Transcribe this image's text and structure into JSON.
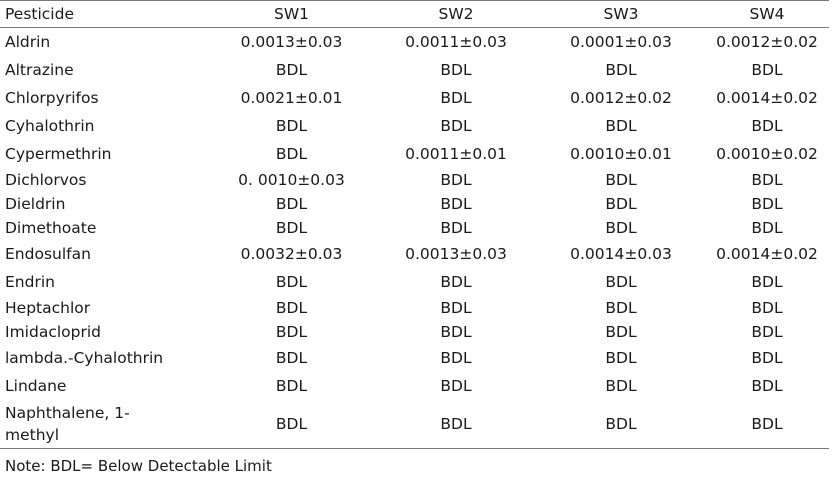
{
  "table": {
    "headers": [
      "Pesticide",
      "SW1",
      "SW2",
      "SW3",
      "SW4"
    ],
    "rows": [
      [
        "Aldrin",
        "0.0013±0.03",
        "0.0011±0.03",
        "0.0001±0.03",
        "0.0012±0.02"
      ],
      [
        "Altrazine",
        "BDL",
        "BDL",
        "BDL",
        "BDL"
      ],
      [
        "Chlorpyrifos",
        "0.0021±0.01",
        "BDL",
        "0.0012±0.02",
        "0.0014±0.02"
      ],
      [
        "Cyhalothrin",
        "BDL",
        "BDL",
        "BDL",
        "BDL"
      ],
      [
        "Cypermethrin",
        "BDL",
        "0.0011±0.01",
        "0.0010±0.01",
        "0.0010±0.02"
      ],
      [
        "Dichlorvos",
        "0. 0010±0.03",
        "BDL",
        "BDL",
        "BDL"
      ],
      [
        "Dieldrin",
        "BDL",
        "BDL",
        "BDL",
        "BDL"
      ],
      [
        "Dimethoate",
        "BDL",
        "BDL",
        "BDL",
        "BDL"
      ],
      [
        "Endosulfan",
        "0.0032±0.03",
        "0.0013±0.03",
        "0.0014±0.03",
        "0.0014±0.02"
      ],
      [
        "Endrin",
        "BDL",
        "BDL",
        "BDL",
        "BDL"
      ],
      [
        "Heptachlor",
        "BDL",
        "BDL",
        "BDL",
        "BDL"
      ],
      [
        "Imidacloprid",
        "BDL",
        "BDL",
        "BDL",
        "BDL"
      ],
      [
        "lambda.-Cyhalothrin",
        "BDL",
        "BDL",
        "BDL",
        "BDL"
      ],
      [
        "Lindane",
        "BDL",
        "BDL",
        "BDL",
        "BDL"
      ],
      [
        "Naphthalene, 1-methyl",
        "BDL",
        "BDL",
        "BDL",
        "BDL"
      ]
    ]
  },
  "note": "Note: BDL= Below Detectable Limit"
}
